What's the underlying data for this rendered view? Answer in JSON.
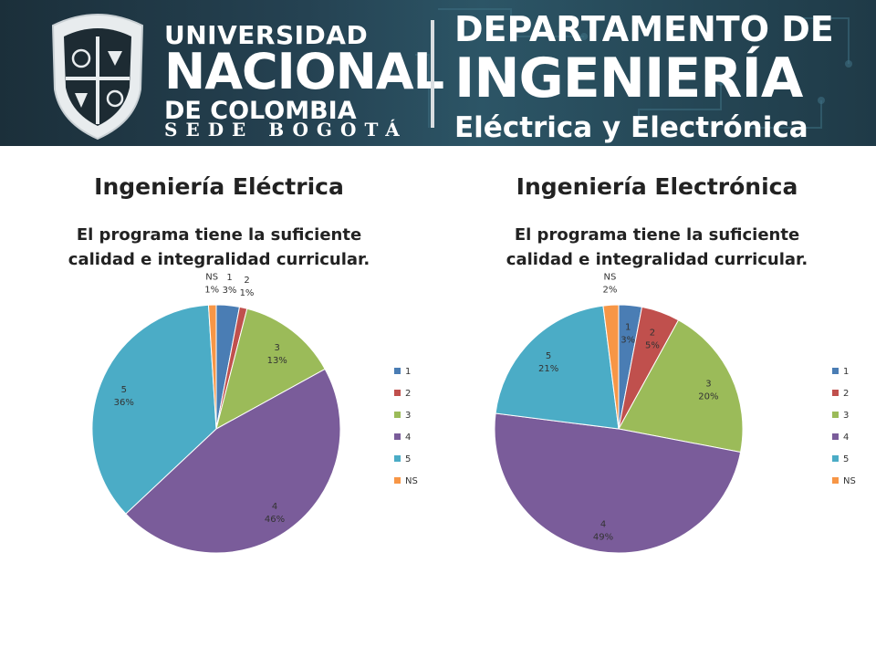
{
  "header": {
    "university_line1": "UNIVERSIDAD",
    "university_line2": "NACIONAL",
    "university_line3": "DE COLOMBIA",
    "sede": "SEDE BOGOTÁ",
    "dept_line1": "DEPARTAMENTO DE",
    "dept_line2": "INGENIERÍA",
    "dept_line3": "Eléctrica y Electrónica"
  },
  "colors": {
    "1": "#4a7db4",
    "2": "#c0504d",
    "3": "#9bbb59",
    "4": "#7a5c9a",
    "5": "#4bacc6",
    "NS": "#f79646"
  },
  "chart_data": [
    {
      "type": "pie",
      "department": "Ingeniería Eléctrica",
      "title_line1": "El programa tiene la suficiente",
      "title_line2": "calidad  e integralidad curricular.",
      "categories": [
        "1",
        "2",
        "3",
        "4",
        "5",
        "NS"
      ],
      "values": [
        3,
        1,
        13,
        46,
        36,
        1
      ],
      "labels": [
        "3%",
        "1%",
        "13%",
        "46%",
        "36%",
        "1%"
      ],
      "legend": [
        "1",
        "2",
        "3",
        "4",
        "5",
        "NS"
      ],
      "legend_position": "right"
    },
    {
      "type": "pie",
      "department": "Ingeniería Electrónica",
      "title_line1": "El programa tiene la suficiente",
      "title_line2": "calidad  e integralidad curricular.",
      "categories": [
        "1",
        "2",
        "3",
        "4",
        "5",
        "NS"
      ],
      "values": [
        3,
        5,
        20,
        49,
        21,
        2
      ],
      "labels": [
        "3%",
        "5%",
        "20%",
        "49%",
        "21%",
        "2%"
      ],
      "legend": [
        "1",
        "2",
        "3",
        "4",
        "5",
        "NS"
      ],
      "legend_position": "right"
    }
  ]
}
